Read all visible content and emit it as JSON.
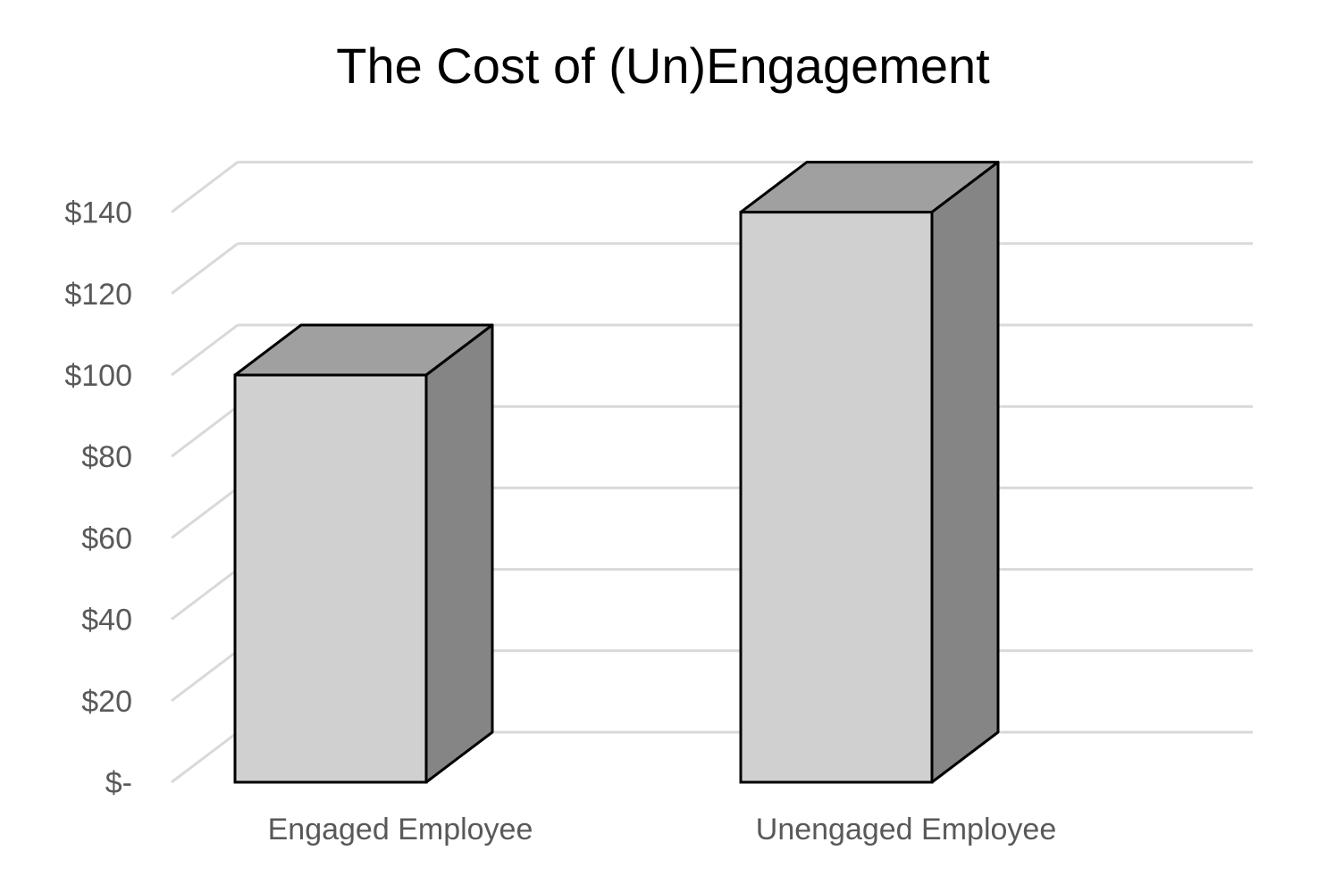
{
  "chart_data": {
    "type": "bar",
    "variant": "3d-column",
    "title": "The Cost of (Un)Engagement",
    "xlabel": "",
    "ylabel": "",
    "categories": [
      "Engaged Employee",
      "Unengaged Employee"
    ],
    "values": [
      100,
      140
    ],
    "ylim": [
      0,
      150
    ],
    "y_ticks": [
      0,
      20,
      40,
      60,
      80,
      100,
      120,
      140
    ],
    "y_tick_labels": [
      "$-",
      "$20",
      "$40",
      "$60",
      "$80",
      "$100",
      "$120",
      "$140"
    ],
    "grid": true,
    "legend": "none",
    "colors": {
      "bar_front": "#d0d0d0",
      "bar_top": "#a0a0a0",
      "bar_side": "#858585",
      "bar_outline": "#000000",
      "gridline": "#d9d9d9",
      "tick_text": "#595959",
      "title_text": "#000000"
    }
  }
}
